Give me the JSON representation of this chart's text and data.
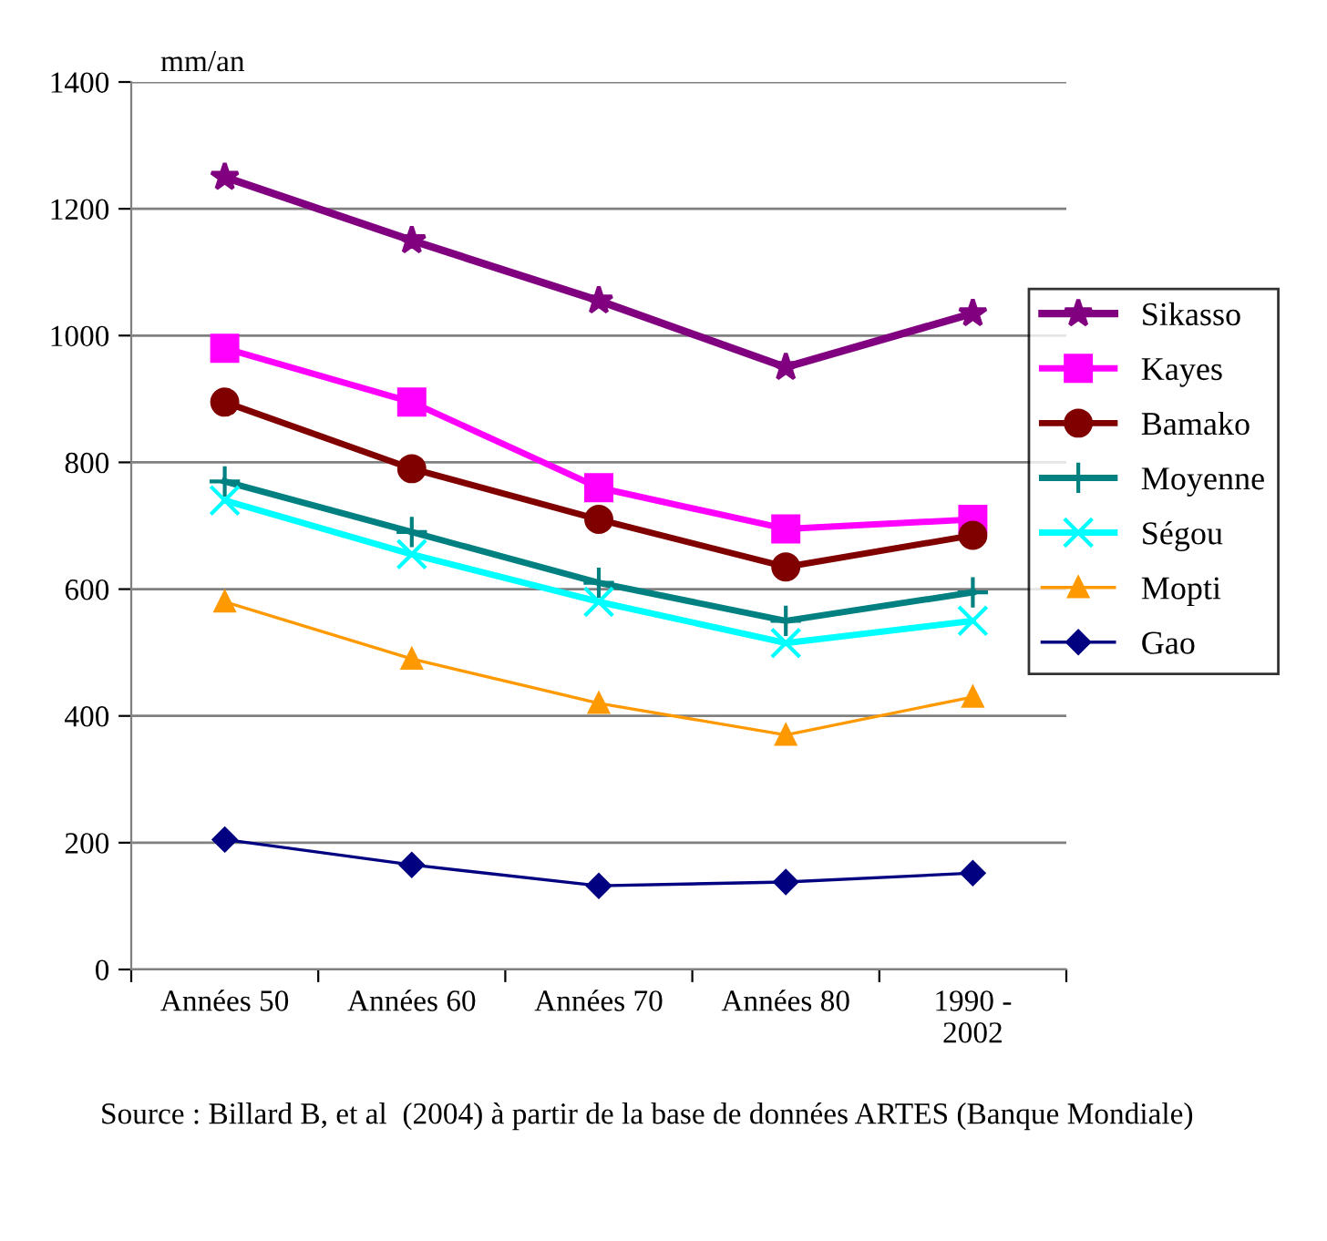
{
  "chart_data": {
    "type": "line",
    "ylabel": "mm/an",
    "categories": [
      "Années 50",
      "Années 60",
      "Années 70",
      "Années 80",
      "1990 -\n2002"
    ],
    "series": [
      {
        "name": "Sikasso",
        "color": "#800080",
        "marker": "star",
        "values": [
          1250,
          1150,
          1055,
          950,
          1035
        ]
      },
      {
        "name": "Kayes",
        "color": "#ff00ff",
        "marker": "square",
        "values": [
          980,
          895,
          760,
          695,
          710
        ]
      },
      {
        "name": "Bamako",
        "color": "#800000",
        "marker": "circle",
        "values": [
          895,
          790,
          710,
          635,
          685
        ]
      },
      {
        "name": "Moyenne",
        "color": "#008080",
        "marker": "cross",
        "values": [
          770,
          690,
          610,
          550,
          595
        ]
      },
      {
        "name": "Ségou",
        "color": "#00ffff",
        "marker": "x",
        "values": [
          740,
          655,
          580,
          515,
          550
        ]
      },
      {
        "name": "Mopti",
        "color": "#ff9900",
        "marker": "triangle",
        "values": [
          580,
          490,
          420,
          370,
          430
        ]
      },
      {
        "name": "Gao",
        "color": "#000080",
        "marker": "diamond",
        "values": [
          205,
          165,
          132,
          138,
          152
        ]
      }
    ],
    "ylim": [
      0,
      1400
    ],
    "yticks": [
      0,
      200,
      400,
      600,
      800,
      1000,
      1200,
      1400
    ],
    "grid": "y",
    "legend": "right",
    "line_style": "solid",
    "annotations": [
      "Source : Billard B, et al  (2004) à partir de la base de données ARTES (Banque Mondiale)"
    ]
  }
}
